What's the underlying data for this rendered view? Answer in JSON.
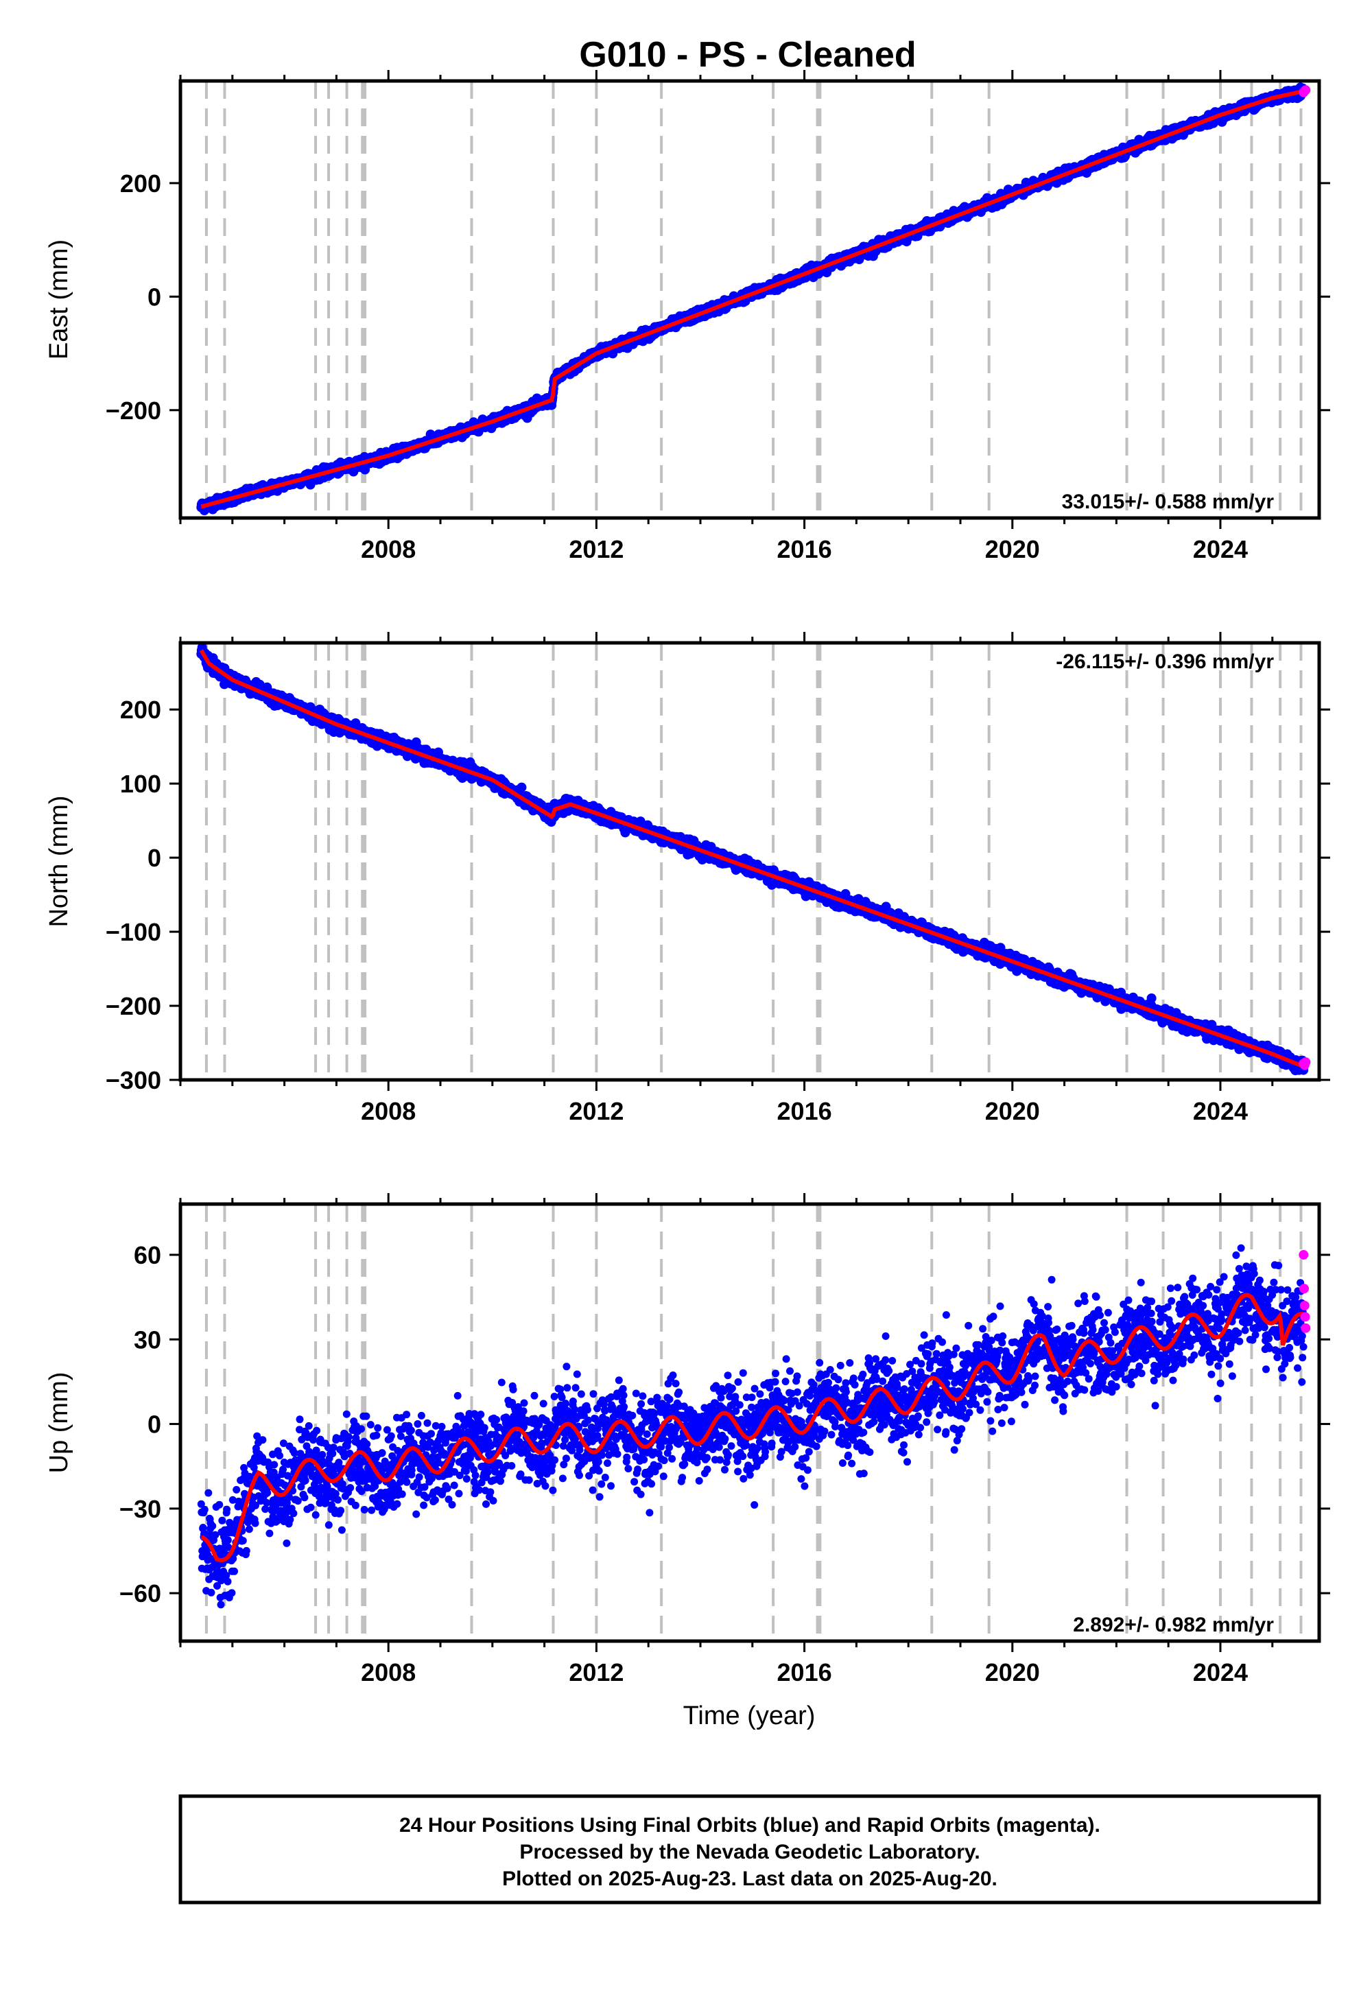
{
  "title": "G010  - PS - Cleaned",
  "xlabel": "Time (year)",
  "footer": [
    "24 Hour Positions Using Final Orbits (blue) and Rapid Orbits (magenta).",
    "Processed by the Nevada Geodetic Laboratory.",
    "Plotted on 2025-Aug-23. Last data on 2025-Aug-20."
  ],
  "colors": {
    "final_orbits": "#0000ff",
    "rapid_orbits": "#ff00ff",
    "model": "#ff0000",
    "event_lines": "#c0c0c0"
  },
  "chart_data": [
    {
      "type": "scatter",
      "component": "East",
      "ylabel": "East (mm)",
      "xlim": [
        2004.0,
        2025.9
      ],
      "ylim": [
        -390,
        380
      ],
      "xticks": [
        2008,
        2012,
        2016,
        2020,
        2024
      ],
      "yticks": [
        -200,
        0,
        200
      ],
      "rate_label": "33.015+/- 0.588 mm/yr",
      "event_lines": [
        2004.5,
        2004.85,
        2006.6,
        2006.85,
        2007.2,
        2007.5,
        2007.55,
        2009.6,
        2011.17,
        2012.0,
        2013.25,
        2015.4,
        2016.25,
        2016.3,
        2018.45,
        2019.55,
        2022.2,
        2022.9,
        2024.0,
        2024.6,
        2025.15,
        2025.55
      ],
      "series": [
        {
          "name": "Final Orbits",
          "x": [
            2004.4,
            2005.0,
            2006.0,
            2007.0,
            2008.0,
            2009.0,
            2010.0,
            2011.15,
            2011.2,
            2012.0,
            2013.0,
            2014.0,
            2015.0,
            2016.0,
            2017.0,
            2018.0,
            2019.0,
            2020.0,
            2021.0,
            2022.0,
            2023.0,
            2024.0,
            2025.0,
            2025.6
          ],
          "y": [
            -370,
            -355,
            -330,
            -305,
            -280,
            -250,
            -220,
            -182,
            -145,
            -100,
            -65,
            -30,
            5,
            40,
            75,
            110,
            145,
            180,
            215,
            250,
            285,
            320,
            350,
            362
          ]
        },
        {
          "name": "Rapid Orbits",
          "x": [
            2025.6,
            2025.62,
            2025.64
          ],
          "y": [
            360,
            362,
            364
          ]
        }
      ]
    },
    {
      "type": "scatter",
      "component": "North",
      "ylabel": "North (mm)",
      "xlim": [
        2004.0,
        2025.9
      ],
      "ylim": [
        -300,
        290
      ],
      "xticks": [
        2008,
        2012,
        2016,
        2020,
        2024
      ],
      "yticks": [
        -300,
        -200,
        -100,
        0,
        100,
        200
      ],
      "rate_label": "-26.115+/- 0.396 mm/yr",
      "event_lines": [
        2004.5,
        2004.85,
        2006.6,
        2006.85,
        2007.2,
        2007.5,
        2007.55,
        2009.6,
        2011.17,
        2012.0,
        2013.25,
        2015.4,
        2016.25,
        2016.3,
        2018.45,
        2019.55,
        2022.2,
        2022.9,
        2024.0,
        2024.6,
        2025.15,
        2025.55
      ],
      "series": [
        {
          "name": "Final Orbits",
          "x": [
            2004.4,
            2004.55,
            2005.0,
            2006.0,
            2007.0,
            2008.0,
            2009.0,
            2010.0,
            2011.15,
            2011.2,
            2011.5,
            2012.0,
            2013.0,
            2014.0,
            2015.0,
            2016.0,
            2017.0,
            2018.0,
            2019.0,
            2020.0,
            2021.0,
            2022.0,
            2023.0,
            2024.0,
            2025.0,
            2025.6
          ],
          "y": [
            280,
            262,
            240,
            210,
            180,
            155,
            130,
            105,
            55,
            65,
            72,
            60,
            35,
            10,
            -15,
            -40,
            -65,
            -90,
            -115,
            -140,
            -165,
            -190,
            -215,
            -240,
            -265,
            -282
          ]
        },
        {
          "name": "Rapid Orbits",
          "x": [
            2025.6,
            2025.62,
            2025.64
          ],
          "y": [
            -278,
            -280,
            -276
          ]
        }
      ]
    },
    {
      "type": "scatter",
      "component": "Up",
      "ylabel": "Up (mm)",
      "xlim": [
        2004.0,
        2025.9
      ],
      "ylim": [
        -77,
        78
      ],
      "xticks": [
        2008,
        2012,
        2016,
        2020,
        2024
      ],
      "yticks": [
        -60,
        -30,
        0,
        30,
        60
      ],
      "rate_label": "2.892+/- 0.982 mm/yr",
      "event_lines": [
        2004.5,
        2004.85,
        2006.6,
        2006.85,
        2007.2,
        2007.5,
        2007.55,
        2009.6,
        2011.17,
        2012.0,
        2013.25,
        2015.4,
        2016.25,
        2016.3,
        2018.45,
        2019.55,
        2022.2,
        2022.9,
        2024.0,
        2024.6,
        2025.15,
        2025.55
      ],
      "series": [
        {
          "name": "Final Orbits",
          "x": [
            2004.4,
            2004.7,
            2005.0,
            2005.5,
            2006.0,
            2007.0,
            2008.0,
            2009.0,
            2010.0,
            2011.0,
            2012.0,
            2013.0,
            2014.0,
            2015.0,
            2016.0,
            2017.0,
            2018.0,
            2019.0,
            2020.0,
            2020.6,
            2021.0,
            2022.0,
            2023.0,
            2024.0,
            2024.6,
            2025.15,
            2025.2,
            2025.6
          ],
          "y": [
            -45,
            -48,
            -40,
            -22,
            -20,
            -15,
            -15,
            -12,
            -8,
            -5,
            -5,
            -3,
            -2,
            0,
            2,
            6,
            9,
            14,
            20,
            28,
            22,
            27,
            32,
            36,
            42,
            40,
            28,
            36
          ]
        },
        {
          "name": "Rapid Orbits",
          "x": [
            2025.6,
            2025.61,
            2025.62,
            2025.63,
            2025.64
          ],
          "y": [
            60,
            48,
            42,
            38,
            34
          ]
        }
      ]
    }
  ]
}
